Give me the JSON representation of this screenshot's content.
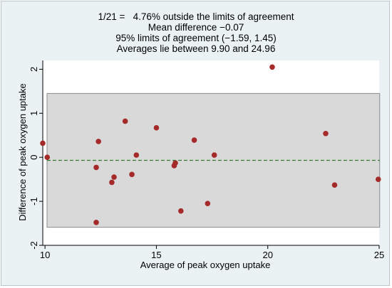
{
  "chart_data": {
    "type": "scatter",
    "title_lines": [
      "1/21 =   4.76% outside the limits of agreement",
      "Mean difference −0.07",
      "95% limits of agreement (−1.59, 1.45)",
      "Averages lie between 9.90 and 24.96"
    ],
    "xlabel": "Average of peak oxygen uptake",
    "ylabel": "Difference of peak oxygen uptake",
    "xlim": [
      9.9,
      25.0
    ],
    "ylim": [
      -2.0,
      2.2
    ],
    "xticks": [
      10,
      15,
      20,
      25
    ],
    "yticks": [
      -2,
      -1,
      0,
      1,
      2
    ],
    "limits_of_agreement": [
      -1.59,
      1.45
    ],
    "mean_difference": -0.07,
    "grid": false,
    "colors": {
      "marker": "#a52a2a",
      "band": "#d9d9d9",
      "band_border": "#8c8c8c",
      "mean_line": "#2e7d32",
      "background": "#eaf2f3",
      "plot_bg": "#ffffff"
    },
    "points": [
      {
        "x": 9.9,
        "y": 0.32
      },
      {
        "x": 10.1,
        "y": 0.0
      },
      {
        "x": 12.3,
        "y": -0.23
      },
      {
        "x": 12.3,
        "y": -1.48
      },
      {
        "x": 12.4,
        "y": 0.36
      },
      {
        "x": 13.0,
        "y": -0.57
      },
      {
        "x": 13.1,
        "y": -0.45
      },
      {
        "x": 13.6,
        "y": 0.82
      },
      {
        "x": 13.9,
        "y": -0.39
      },
      {
        "x": 14.1,
        "y": 0.05
      },
      {
        "x": 15.0,
        "y": 0.67
      },
      {
        "x": 15.8,
        "y": -0.19
      },
      {
        "x": 15.85,
        "y": -0.13
      },
      {
        "x": 16.1,
        "y": -1.22
      },
      {
        "x": 16.7,
        "y": 0.39
      },
      {
        "x": 17.3,
        "y": -1.05
      },
      {
        "x": 17.6,
        "y": 0.05
      },
      {
        "x": 20.2,
        "y": 2.05
      },
      {
        "x": 22.6,
        "y": 0.54
      },
      {
        "x": 23.0,
        "y": -0.63
      },
      {
        "x": 24.96,
        "y": -0.5
      }
    ]
  }
}
